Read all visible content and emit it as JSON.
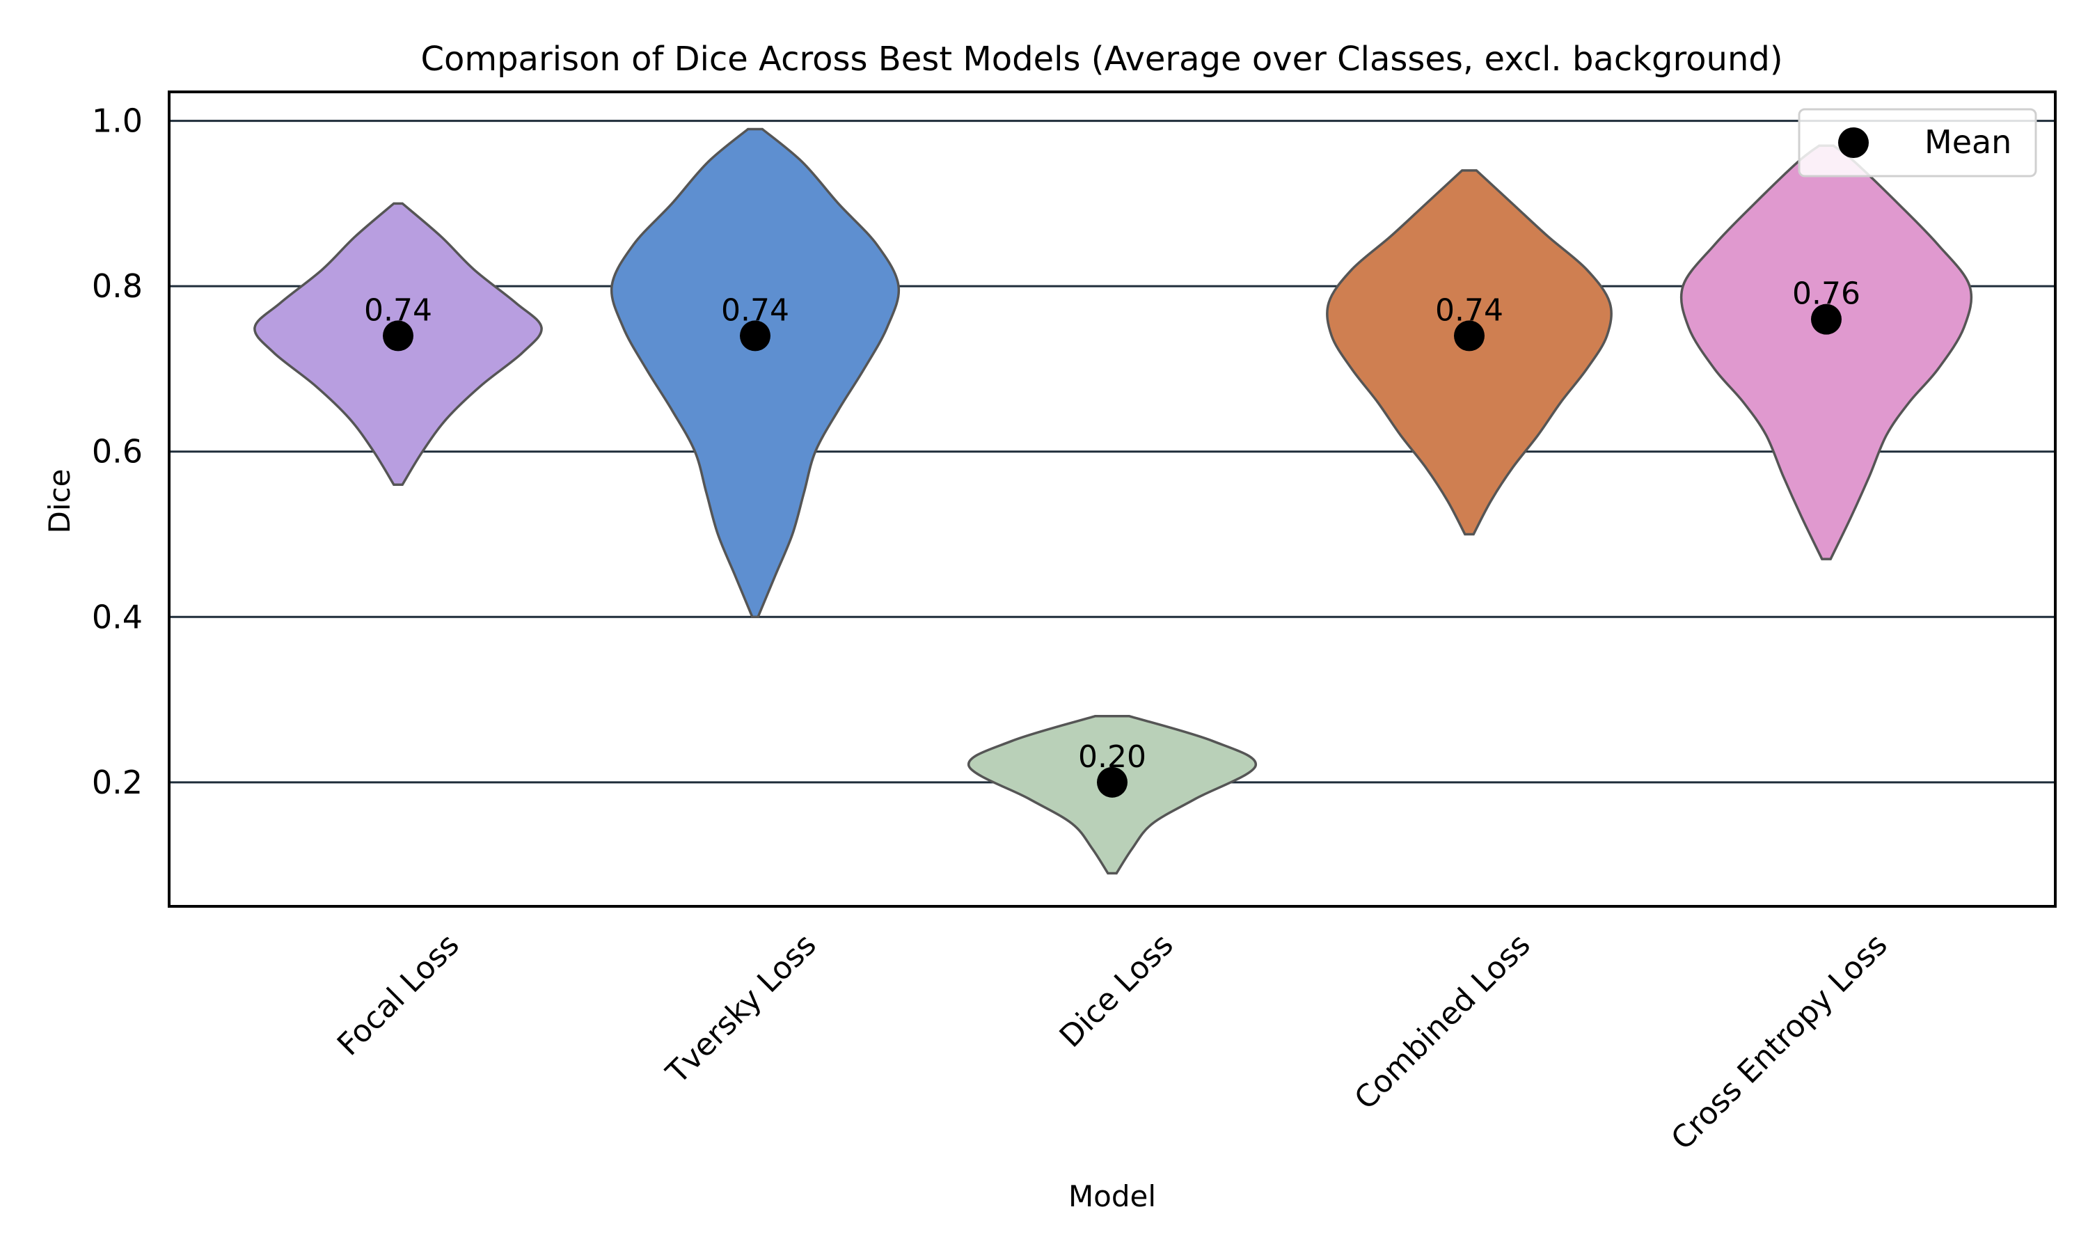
{
  "chart_data": {
    "type": "violin",
    "title": "Comparison of Dice Across Best Models (Average over Classes, excl. background)",
    "xlabel": "Model",
    "ylabel": "Dice",
    "ylim": [
      0.05,
      1.035
    ],
    "yticks": [
      0.2,
      0.4,
      0.6,
      0.8,
      1.0
    ],
    "ytick_labels": [
      "0.2",
      "0.4",
      "0.6",
      "0.8",
      "1.0"
    ],
    "grid": "horizontal",
    "legend": {
      "placement": "top-right",
      "entries": [
        "Mean"
      ]
    },
    "categories": [
      "Focal Loss",
      "Tversky Loss",
      "Dice Loss",
      "Combined Loss",
      "Cross Entropy Loss"
    ],
    "series": [
      {
        "category": "Focal Loss",
        "color": "#b89ee0",
        "min": 0.56,
        "max": 0.9,
        "mean": 0.74,
        "mean_label": "0.74",
        "profile": [
          [
            0.56,
            0.03
          ],
          [
            0.6,
            0.17
          ],
          [
            0.64,
            0.34
          ],
          [
            0.68,
            0.58
          ],
          [
            0.72,
            0.87
          ],
          [
            0.75,
            1.0
          ],
          [
            0.78,
            0.82
          ],
          [
            0.82,
            0.53
          ],
          [
            0.86,
            0.3
          ],
          [
            0.9,
            0.03
          ]
        ]
      },
      {
        "category": "Tversky Loss",
        "color": "#5e8fd0",
        "min": 0.4,
        "max": 0.99,
        "mean": 0.74,
        "mean_label": "0.74",
        "profile": [
          [
            0.4,
            0.02
          ],
          [
            0.45,
            0.14
          ],
          [
            0.5,
            0.26
          ],
          [
            0.55,
            0.34
          ],
          [
            0.6,
            0.42
          ],
          [
            0.65,
            0.58
          ],
          [
            0.7,
            0.76
          ],
          [
            0.75,
            0.92
          ],
          [
            0.8,
            1.0
          ],
          [
            0.85,
            0.85
          ],
          [
            0.9,
            0.58
          ],
          [
            0.95,
            0.33
          ],
          [
            0.99,
            0.05
          ]
        ]
      },
      {
        "category": "Dice Loss",
        "color": "#b9d0b8",
        "min": 0.09,
        "max": 0.28,
        "mean": 0.2,
        "mean_label": "0.20",
        "profile": [
          [
            0.09,
            0.03
          ],
          [
            0.12,
            0.14
          ],
          [
            0.15,
            0.28
          ],
          [
            0.18,
            0.58
          ],
          [
            0.22,
            1.0
          ],
          [
            0.25,
            0.7
          ],
          [
            0.28,
            0.12
          ]
        ]
      },
      {
        "category": "Combined Loss",
        "color": "#cf7f51",
        "min": 0.5,
        "max": 0.94,
        "mean": 0.74,
        "mean_label": "0.74",
        "profile": [
          [
            0.5,
            0.03
          ],
          [
            0.54,
            0.15
          ],
          [
            0.58,
            0.3
          ],
          [
            0.62,
            0.48
          ],
          [
            0.66,
            0.64
          ],
          [
            0.7,
            0.82
          ],
          [
            0.74,
            0.96
          ],
          [
            0.78,
            0.98
          ],
          [
            0.82,
            0.82
          ],
          [
            0.86,
            0.55
          ],
          [
            0.9,
            0.3
          ],
          [
            0.94,
            0.05
          ]
        ]
      },
      {
        "category": "Cross Entropy Loss",
        "color": "#e099cf",
        "min": 0.47,
        "max": 0.97,
        "mean": 0.76,
        "mean_label": "0.76",
        "profile": [
          [
            0.47,
            0.03
          ],
          [
            0.52,
            0.17
          ],
          [
            0.57,
            0.3
          ],
          [
            0.62,
            0.42
          ],
          [
            0.66,
            0.58
          ],
          [
            0.7,
            0.78
          ],
          [
            0.75,
            0.96
          ],
          [
            0.8,
            1.0
          ],
          [
            0.85,
            0.78
          ],
          [
            0.9,
            0.5
          ],
          [
            0.95,
            0.2
          ],
          [
            0.97,
            0.05
          ]
        ]
      }
    ]
  }
}
